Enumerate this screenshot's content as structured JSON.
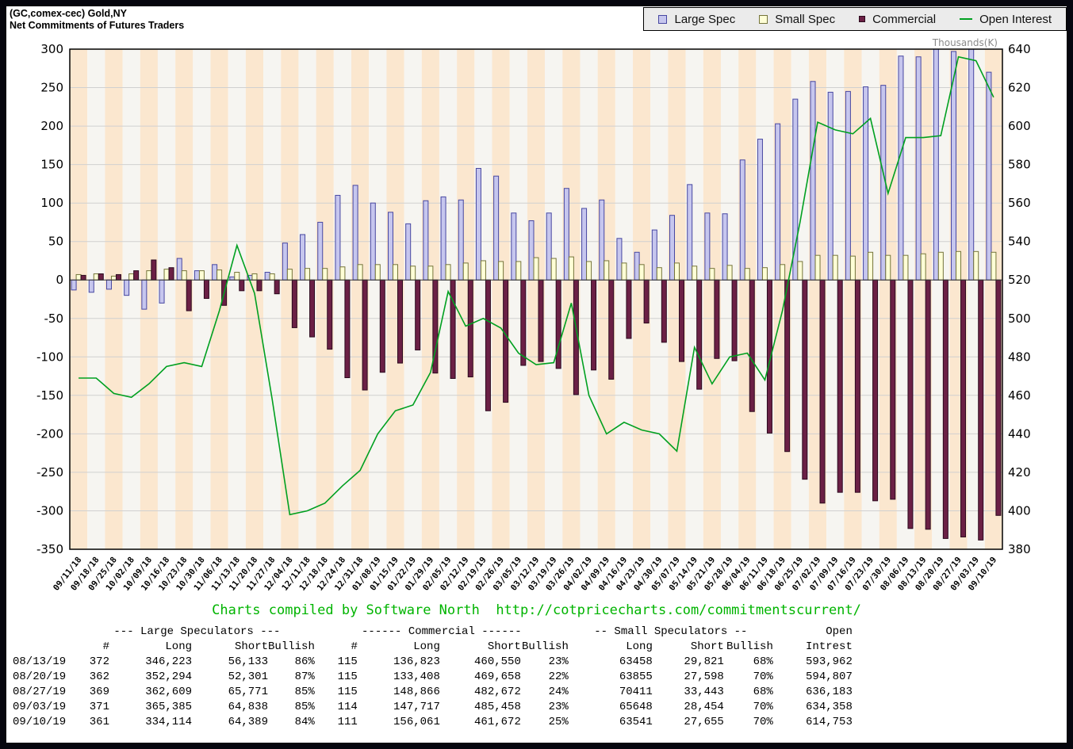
{
  "header": {
    "title_line1": "(GC,comex-cec) Gold,NY",
    "title_line2": "Net Commitments of Futures Traders",
    "legend": [
      {
        "id": "large-spec",
        "label": "Large Spec",
        "type": "square",
        "color": "#c6c6ee",
        "border": "#4747a1"
      },
      {
        "id": "small-spec",
        "label": "Small Spec",
        "type": "square",
        "color": "#ffffd6",
        "border": "#74743a"
      },
      {
        "id": "commercial",
        "label": "Commercial",
        "type": "square-small",
        "color": "#6b2045",
        "border": "#2c0a1e"
      },
      {
        "id": "open-interest",
        "label": "Open Interest",
        "type": "line",
        "color": "#00a020",
        "border": "#00a020"
      }
    ]
  },
  "chart_data": {
    "type": "bar",
    "title": "(GC,comex-cec) Gold,NY — Net Commitments of Futures Traders",
    "right_axis_label": "Thousands(K)",
    "left_axis": {
      "min": -350,
      "max": 300,
      "step": 50
    },
    "right_axis": {
      "min": 380,
      "max": 640,
      "step": 20
    },
    "categories": [
      "09/11/18",
      "09/18/18",
      "09/25/18",
      "10/02/18",
      "10/09/18",
      "10/16/18",
      "10/23/18",
      "10/30/18",
      "11/06/18",
      "11/13/18",
      "11/20/18",
      "11/27/18",
      "12/04/18",
      "12/11/18",
      "12/18/18",
      "12/24/18",
      "12/31/18",
      "01/08/19",
      "01/15/19",
      "01/22/19",
      "01/29/19",
      "02/05/19",
      "02/12/19",
      "02/19/19",
      "02/26/19",
      "03/05/19",
      "03/12/19",
      "03/19/19",
      "03/26/19",
      "04/02/19",
      "04/09/19",
      "04/16/19",
      "04/23/19",
      "04/30/19",
      "05/07/19",
      "05/14/19",
      "05/21/19",
      "05/28/19",
      "06/04/19",
      "06/11/19",
      "06/18/19",
      "06/25/19",
      "07/02/19",
      "07/09/19",
      "07/16/19",
      "07/23/19",
      "07/30/19",
      "08/06/19",
      "08/13/19",
      "08/20/19",
      "08/27/19",
      "09/03/19",
      "09/10/19"
    ],
    "series": [
      {
        "name": "Large Spec",
        "type": "bar",
        "axis": "left",
        "values": [
          -13,
          -16,
          -12,
          -20,
          -38,
          -30,
          28,
          12,
          20,
          4,
          6,
          10,
          48,
          59,
          75,
          110,
          123,
          100,
          88,
          73,
          103,
          108,
          104,
          145,
          135,
          87,
          77,
          87,
          119,
          93,
          104,
          54,
          36,
          65,
          84,
          124,
          87,
          86,
          156,
          183,
          203,
          235,
          258,
          244,
          245,
          251,
          253,
          291,
          290,
          300,
          297,
          300,
          270
        ]
      },
      {
        "name": "Small Spec",
        "type": "bar",
        "axis": "left",
        "values": [
          7,
          8,
          5,
          8,
          12,
          14,
          12,
          12,
          13,
          10,
          8,
          8,
          14,
          15,
          15,
          17,
          20,
          20,
          20,
          18,
          18,
          20,
          22,
          25,
          24,
          24,
          29,
          28,
          30,
          24,
          25,
          22,
          20,
          16,
          22,
          18,
          15,
          19,
          15,
          16,
          20,
          24,
          32,
          32,
          31,
          36,
          32,
          32,
          34,
          36,
          37,
          37,
          36
        ]
      },
      {
        "name": "Commercial",
        "type": "bar",
        "axis": "left",
        "values": [
          6,
          8,
          7,
          12,
          26,
          16,
          -40,
          -24,
          -33,
          -14,
          -14,
          -18,
          -62,
          -74,
          -90,
          -127,
          -143,
          -120,
          -108,
          -91,
          -121,
          -128,
          -126,
          -170,
          -159,
          -111,
          -106,
          -115,
          -149,
          -117,
          -129,
          -76,
          -56,
          -81,
          -106,
          -142,
          -102,
          -105,
          -171,
          -199,
          -223,
          -259,
          -290,
          -276,
          -276,
          -287,
          -285,
          -323,
          -324,
          -336,
          -334,
          -338,
          -306
        ]
      },
      {
        "name": "Open Interest",
        "type": "line",
        "axis": "right",
        "values": [
          469,
          469,
          461,
          459,
          466,
          475,
          477,
          475,
          504,
          538,
          513,
          458,
          398,
          400,
          404,
          413,
          421,
          440,
          452,
          455,
          472,
          514,
          496,
          500,
          495,
          482,
          476,
          477,
          508,
          460,
          440,
          446,
          442,
          440,
          431,
          485,
          466,
          480,
          482,
          468,
          504,
          550,
          602,
          598,
          596,
          604,
          565,
          594,
          594,
          595,
          636,
          634,
          615
        ]
      }
    ],
    "colors": {
      "large_spec_fill": "#c6c6ee",
      "large_spec_border": "#4747a1",
      "small_spec_fill": "#ffffd6",
      "small_spec_border": "#74743a",
      "commercial_fill": "#6b2045",
      "commercial_border": "#2c0a1e",
      "open_interest": "#00a020",
      "stripe_a": "#fbe7cf",
      "stripe_b": "#f6f5f1",
      "grid": "#d0d0d0",
      "zero_line": "#333333",
      "frame": "#000000"
    },
    "legend_position": "top-right",
    "grid": true
  },
  "credit": "Charts compiled by Software North  http://cotpricecharts.com/commitmentscurrent/",
  "table": {
    "group_headers": [
      "--- Large Speculators ---",
      "------ Commercial ------",
      "-- Small Speculators --",
      "Open"
    ],
    "col_headers": [
      "",
      "#",
      "Long",
      "Short",
      "Bullish",
      "#",
      "Long",
      "Short",
      "Bullish",
      "Long",
      "Short",
      "Bullish",
      "Intrest"
    ],
    "rows": [
      [
        "08/13/19",
        "372",
        "346,223",
        "56,133",
        "86%",
        "115",
        "136,823",
        "460,550",
        "23%",
        "63458",
        "29,821",
        "68%",
        "593,962"
      ],
      [
        "08/20/19",
        "362",
        "352,294",
        "52,301",
        "87%",
        "115",
        "133,408",
        "469,658",
        "22%",
        "63855",
        "27,598",
        "70%",
        "594,807"
      ],
      [
        "08/27/19",
        "369",
        "362,609",
        "65,771",
        "85%",
        "115",
        "148,866",
        "482,672",
        "24%",
        "70411",
        "33,443",
        "68%",
        "636,183"
      ],
      [
        "09/03/19",
        "371",
        "365,385",
        "64,838",
        "85%",
        "114",
        "147,717",
        "485,458",
        "23%",
        "65648",
        "28,454",
        "70%",
        "634,358"
      ],
      [
        "09/10/19",
        "361",
        "334,114",
        "64,389",
        "84%",
        "111",
        "156,061",
        "461,672",
        "25%",
        "63541",
        "27,655",
        "70%",
        "614,753"
      ]
    ]
  }
}
